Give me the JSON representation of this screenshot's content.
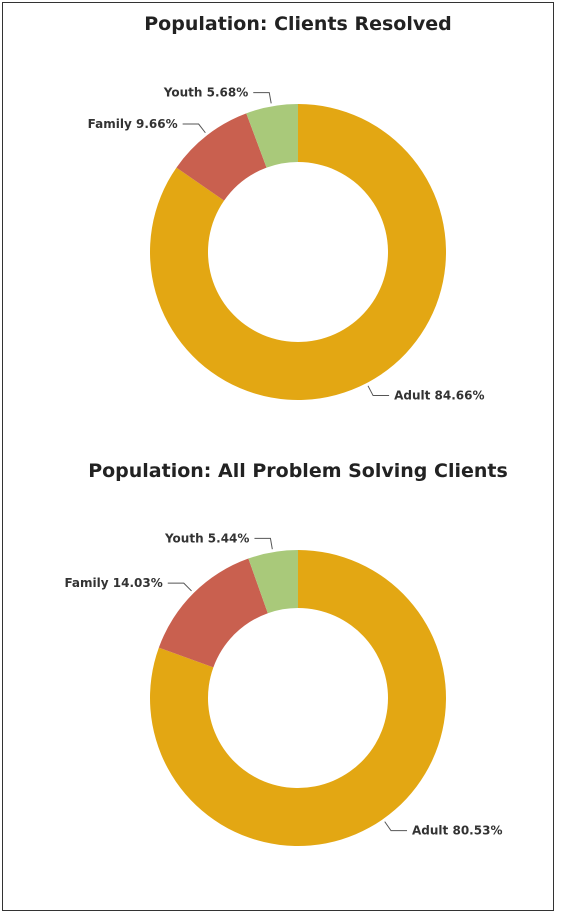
{
  "chart_data": [
    {
      "type": "donut",
      "title": "Population: Clients Resolved",
      "categories": [
        "Adult",
        "Family",
        "Youth"
      ],
      "values": [
        84.66,
        9.66,
        5.68
      ],
      "value_labels": [
        "84.66%",
        "9.66%",
        "5.68%"
      ],
      "colors": [
        "#e3a713",
        "#c9604f",
        "#a9c97a"
      ]
    },
    {
      "type": "donut",
      "title": "Population: All Problem Solving Clients",
      "categories": [
        "Adult",
        "Family",
        "Youth"
      ],
      "values": [
        80.53,
        14.03,
        5.44
      ],
      "value_labels": [
        "80.53%",
        "14.03%",
        "5.44%"
      ],
      "colors": [
        "#e3a713",
        "#c9604f",
        "#a9c97a"
      ]
    }
  ]
}
